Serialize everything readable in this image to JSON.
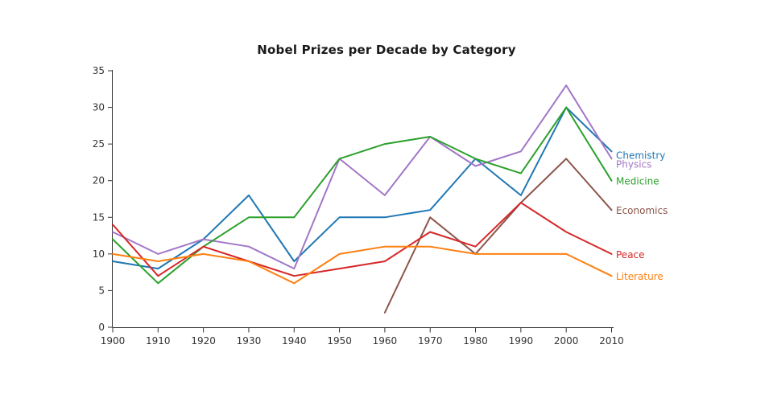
{
  "title": "Nobel Prizes per Decade by Category",
  "chart_data": {
    "type": "line",
    "title": "Nobel Prizes per Decade by Category",
    "xlabel": "",
    "ylabel": "",
    "x": [
      1900,
      1910,
      1920,
      1930,
      1940,
      1950,
      1960,
      1970,
      1980,
      1990,
      2000,
      2010
    ],
    "x_tick_labels": [
      "1900",
      "1910",
      "1920",
      "1930",
      "1940",
      "1950",
      "1960",
      "1970",
      "1980",
      "1990",
      "2000",
      "2010"
    ],
    "y_ticks": [
      0,
      5,
      10,
      15,
      20,
      25,
      30,
      35
    ],
    "ylim": [
      0,
      35
    ],
    "xlim": [
      1900,
      2010
    ],
    "grid": false,
    "legend_position": "line-end-labels-right",
    "axis_color": "#333333",
    "tick_label_color": "#333333",
    "series": [
      {
        "name": "Chemistry",
        "color": "#1f77b4",
        "values": [
          9,
          8,
          12,
          18,
          9,
          15,
          15,
          16,
          23,
          18,
          30,
          24
        ]
      },
      {
        "name": "Physics",
        "color": "#a276c7",
        "values": [
          13,
          10,
          12,
          11,
          8,
          23,
          18,
          26,
          22,
          24,
          33,
          23
        ]
      },
      {
        "name": "Medicine",
        "color": "#2ca02c",
        "values": [
          12,
          6,
          11,
          15,
          15,
          23,
          25,
          26,
          23,
          21,
          30,
          20
        ]
      },
      {
        "name": "Economics",
        "color": "#8c564b",
        "values": [
          null,
          null,
          null,
          null,
          null,
          null,
          2,
          15,
          10,
          17,
          23,
          16
        ]
      },
      {
        "name": "Peace",
        "color": "#d62728",
        "values": [
          14,
          7,
          11,
          9,
          7,
          8,
          9,
          13,
          11,
          17,
          13,
          10
        ]
      },
      {
        "name": "Literature",
        "color": "#ff7f0e",
        "values": [
          10,
          9,
          10,
          9,
          6,
          10,
          11,
          11,
          10,
          10,
          10,
          7
        ]
      }
    ]
  }
}
